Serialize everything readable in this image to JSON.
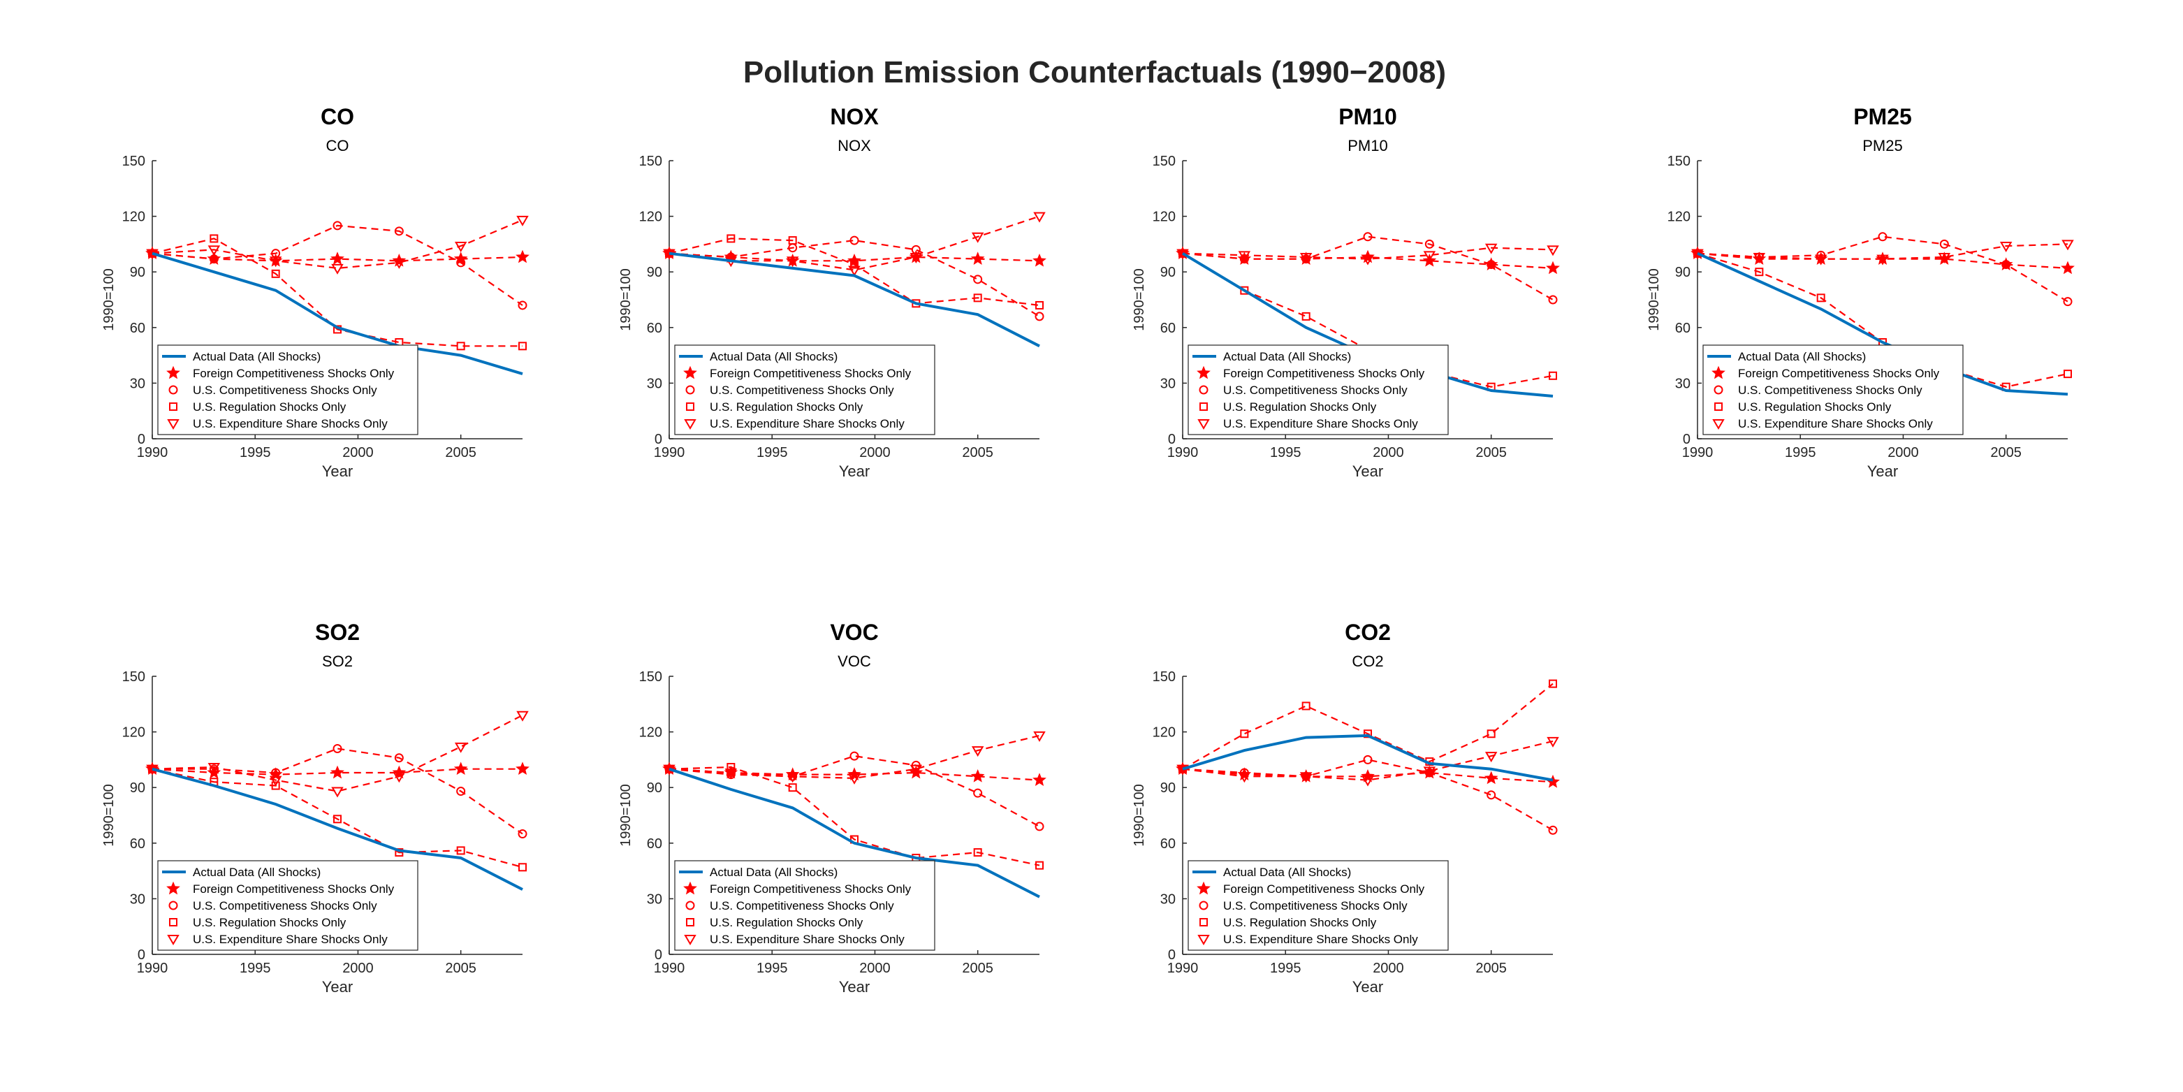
{
  "figure": {
    "title": "Pollution Emission Counterfactuals (1990−2008)"
  },
  "legend_entries": [
    "Actual Data (All Shocks)",
    "Foreign Competitiveness Shocks Only",
    "U.S. Competitiveness Shocks Only",
    "U.S. Regulation Shocks Only",
    "U.S. Expenditure Share Shocks Only"
  ],
  "colors": {
    "actual": "#0072BD",
    "counterfactual": "#FF0000",
    "axis": "#262626"
  },
  "chart_data": [
    {
      "type": "line",
      "title": "CO",
      "subtitle": "CO",
      "xlabel": "Year",
      "ylabel": "1990=100",
      "xlim": [
        1990,
        2008
      ],
      "ylim": [
        0,
        150
      ],
      "xticks": [
        1990,
        1995,
        2000,
        2005
      ],
      "yticks": [
        0,
        30,
        60,
        90,
        120,
        150
      ],
      "legend_position": "lower-left",
      "grid": false,
      "x": [
        1990,
        1993,
        1996,
        1999,
        2002,
        2005,
        2008
      ],
      "series": [
        {
          "name": "Actual Data (All Shocks)",
          "style": "solid",
          "marker": "none",
          "values": [
            100,
            90,
            80,
            60,
            50,
            45,
            35
          ]
        },
        {
          "name": "Foreign Competitiveness Shocks Only",
          "style": "dashed",
          "marker": "star",
          "values": [
            100,
            97,
            96,
            97,
            96,
            97,
            98
          ]
        },
        {
          "name": "U.S. Competitiveness Shocks Only",
          "style": "dashed",
          "marker": "circle",
          "values": [
            100,
            97,
            100,
            115,
            112,
            95,
            72
          ]
        },
        {
          "name": "U.S. Regulation Shocks Only",
          "style": "dashed",
          "marker": "square",
          "values": [
            100,
            108,
            89,
            59,
            52,
            50,
            50
          ]
        },
        {
          "name": "U.S. Expenditure Share Shocks Only",
          "style": "dashed",
          "marker": "triangle-down",
          "values": [
            100,
            102,
            96,
            92,
            95,
            104,
            118
          ]
        }
      ]
    },
    {
      "type": "line",
      "title": "NOX",
      "subtitle": "NOX",
      "xlabel": "Year",
      "ylabel": "1990=100",
      "xlim": [
        1990,
        2008
      ],
      "ylim": [
        0,
        150
      ],
      "xticks": [
        1990,
        1995,
        2000,
        2005
      ],
      "yticks": [
        0,
        30,
        60,
        90,
        120,
        150
      ],
      "legend_position": "lower-left",
      "grid": false,
      "x": [
        1990,
        1993,
        1996,
        1999,
        2002,
        2005,
        2008
      ],
      "series": [
        {
          "name": "Actual Data (All Shocks)",
          "style": "solid",
          "marker": "none",
          "values": [
            100,
            96,
            92,
            88,
            73,
            67,
            50
          ]
        },
        {
          "name": "Foreign Competitiveness Shocks Only",
          "style": "dashed",
          "marker": "star",
          "values": [
            100,
            98,
            96,
            96,
            98,
            97,
            96
          ]
        },
        {
          "name": "U.S. Competitiveness Shocks Only",
          "style": "dashed",
          "marker": "circle",
          "values": [
            100,
            98,
            103,
            107,
            102,
            86,
            66
          ]
        },
        {
          "name": "U.S. Regulation Shocks Only",
          "style": "dashed",
          "marker": "square",
          "values": [
            100,
            108,
            107,
            94,
            73,
            76,
            72
          ]
        },
        {
          "name": "U.S. Expenditure Share Shocks Only",
          "style": "dashed",
          "marker": "triangle-down",
          "values": [
            100,
            96,
            96,
            91,
            98,
            109,
            120
          ]
        }
      ]
    },
    {
      "type": "line",
      "title": "PM10",
      "subtitle": "PM10",
      "xlabel": "Year",
      "ylabel": "1990=100",
      "xlim": [
        1990,
        2008
      ],
      "ylim": [
        0,
        150
      ],
      "xticks": [
        1990,
        1995,
        2000,
        2005
      ],
      "yticks": [
        0,
        30,
        60,
        90,
        120,
        150
      ],
      "legend_position": "lower-left",
      "grid": false,
      "x": [
        1990,
        1993,
        1996,
        1999,
        2002,
        2005,
        2008
      ],
      "series": [
        {
          "name": "Actual Data (All Shocks)",
          "style": "solid",
          "marker": "none",
          "values": [
            100,
            80,
            60,
            45,
            36,
            26,
            23
          ]
        },
        {
          "name": "Foreign Competitiveness Shocks Only",
          "style": "dashed",
          "marker": "star",
          "values": [
            100,
            97,
            97,
            98,
            96,
            94,
            92
          ]
        },
        {
          "name": "U.S. Competitiveness Shocks Only",
          "style": "dashed",
          "marker": "circle",
          "values": [
            100,
            97,
            97,
            109,
            105,
            94,
            75
          ]
        },
        {
          "name": "U.S. Regulation Shocks Only",
          "style": "dashed",
          "marker": "square",
          "values": [
            100,
            80,
            66,
            48,
            36,
            28,
            34
          ]
        },
        {
          "name": "U.S. Expenditure Share Shocks Only",
          "style": "dashed",
          "marker": "triangle-down",
          "values": [
            100,
            99,
            98,
            97,
            99,
            103,
            102
          ]
        }
      ]
    },
    {
      "type": "line",
      "title": "PM25",
      "subtitle": "PM25",
      "xlabel": "Year",
      "ylabel": "1990=100",
      "xlim": [
        1990,
        2008
      ],
      "ylim": [
        0,
        150
      ],
      "xticks": [
        1990,
        1995,
        2000,
        2005
      ],
      "yticks": [
        0,
        30,
        60,
        90,
        120,
        150
      ],
      "legend_position": "lower-left",
      "grid": false,
      "x": [
        1990,
        1993,
        1996,
        1999,
        2002,
        2005,
        2008
      ],
      "series": [
        {
          "name": "Actual Data (All Shocks)",
          "style": "solid",
          "marker": "none",
          "values": [
            100,
            85,
            70,
            52,
            38,
            26,
            24
          ]
        },
        {
          "name": "Foreign Competitiveness Shocks Only",
          "style": "dashed",
          "marker": "star",
          "values": [
            100,
            97,
            97,
            97,
            97,
            94,
            92
          ]
        },
        {
          "name": "U.S. Competitiveness Shocks Only",
          "style": "dashed",
          "marker": "circle",
          "values": [
            100,
            98,
            99,
            109,
            105,
            94,
            74
          ]
        },
        {
          "name": "U.S. Regulation Shocks Only",
          "style": "dashed",
          "marker": "square",
          "values": [
            100,
            90,
            76,
            52,
            38,
            28,
            35
          ]
        },
        {
          "name": "U.S. Expenditure Share Shocks Only",
          "style": "dashed",
          "marker": "triangle-down",
          "values": [
            100,
            98,
            97,
            97,
            98,
            104,
            105
          ]
        }
      ]
    },
    {
      "type": "line",
      "title": "SO2",
      "subtitle": "SO2",
      "xlabel": "Year",
      "ylabel": "1990=100",
      "xlim": [
        1990,
        2008
      ],
      "ylim": [
        0,
        150
      ],
      "xticks": [
        1990,
        1995,
        2000,
        2005
      ],
      "yticks": [
        0,
        30,
        60,
        90,
        120,
        150
      ],
      "legend_position": "lower-left",
      "grid": false,
      "x": [
        1990,
        1993,
        1996,
        1999,
        2002,
        2005,
        2008
      ],
      "series": [
        {
          "name": "Actual Data (All Shocks)",
          "style": "solid",
          "marker": "none",
          "values": [
            100,
            91,
            81,
            68,
            56,
            52,
            35
          ]
        },
        {
          "name": "Foreign Competitiveness Shocks Only",
          "style": "dashed",
          "marker": "star",
          "values": [
            100,
            98,
            97,
            98,
            98,
            100,
            100
          ]
        },
        {
          "name": "U.S. Competitiveness Shocks Only",
          "style": "dashed",
          "marker": "circle",
          "values": [
            100,
            100,
            98,
            111,
            106,
            88,
            65
          ]
        },
        {
          "name": "U.S. Regulation Shocks Only",
          "style": "dashed",
          "marker": "square",
          "values": [
            100,
            93,
            91,
            73,
            55,
            56,
            47
          ]
        },
        {
          "name": "U.S. Expenditure Share Shocks Only",
          "style": "dashed",
          "marker": "triangle-down",
          "values": [
            100,
            101,
            94,
            88,
            96,
            112,
            129
          ]
        }
      ]
    },
    {
      "type": "line",
      "title": "VOC",
      "subtitle": "VOC",
      "xlabel": "Year",
      "ylabel": "1990=100",
      "xlim": [
        1990,
        2008
      ],
      "ylim": [
        0,
        150
      ],
      "xticks": [
        1990,
        1995,
        2000,
        2005
      ],
      "yticks": [
        0,
        30,
        60,
        90,
        120,
        150
      ],
      "legend_position": "lower-left",
      "grid": false,
      "x": [
        1990,
        1993,
        1996,
        1999,
        2002,
        2005,
        2008
      ],
      "series": [
        {
          "name": "Actual Data (All Shocks)",
          "style": "solid",
          "marker": "none",
          "values": [
            100,
            89,
            79,
            60,
            52,
            48,
            31
          ]
        },
        {
          "name": "Foreign Competitiveness Shocks Only",
          "style": "dashed",
          "marker": "star",
          "values": [
            100,
            98,
            97,
            97,
            98,
            96,
            94
          ]
        },
        {
          "name": "U.S. Competitiveness Shocks Only",
          "style": "dashed",
          "marker": "circle",
          "values": [
            100,
            97,
            96,
            107,
            102,
            87,
            69
          ]
        },
        {
          "name": "U.S. Regulation Shocks Only",
          "style": "dashed",
          "marker": "square",
          "values": [
            100,
            101,
            90,
            62,
            52,
            55,
            48
          ]
        },
        {
          "name": "U.S. Expenditure Share Shocks Only",
          "style": "dashed",
          "marker": "triangle-down",
          "values": [
            100,
            98,
            96,
            95,
            100,
            110,
            118
          ]
        }
      ]
    },
    {
      "type": "line",
      "title": "CO2",
      "subtitle": "CO2",
      "xlabel": "Year",
      "ylabel": "1990=100",
      "xlim": [
        1990,
        2008
      ],
      "ylim": [
        0,
        150
      ],
      "xticks": [
        1990,
        1995,
        2000,
        2005
      ],
      "yticks": [
        0,
        30,
        60,
        90,
        120,
        150
      ],
      "legend_position": "lower-left",
      "grid": false,
      "x": [
        1990,
        1993,
        1996,
        1999,
        2002,
        2005,
        2008
      ],
      "series": [
        {
          "name": "Actual Data (All Shocks)",
          "style": "solid",
          "marker": "none",
          "values": [
            100,
            110,
            117,
            118,
            103,
            100,
            94
          ]
        },
        {
          "name": "Foreign Competitiveness Shocks Only",
          "style": "dashed",
          "marker": "star",
          "values": [
            100,
            97,
            96,
            96,
            98,
            95,
            93
          ]
        },
        {
          "name": "U.S. Competitiveness Shocks Only",
          "style": "dashed",
          "marker": "circle",
          "values": [
            100,
            98,
            96,
            105,
            98,
            86,
            67
          ]
        },
        {
          "name": "U.S. Regulation Shocks Only",
          "style": "dashed",
          "marker": "square",
          "values": [
            100,
            119,
            134,
            119,
            104,
            119,
            146
          ]
        },
        {
          "name": "U.S. Expenditure Share Shocks Only",
          "style": "dashed",
          "marker": "triangle-down",
          "values": [
            100,
            96,
            96,
            94,
            99,
            107,
            115
          ]
        }
      ]
    }
  ]
}
